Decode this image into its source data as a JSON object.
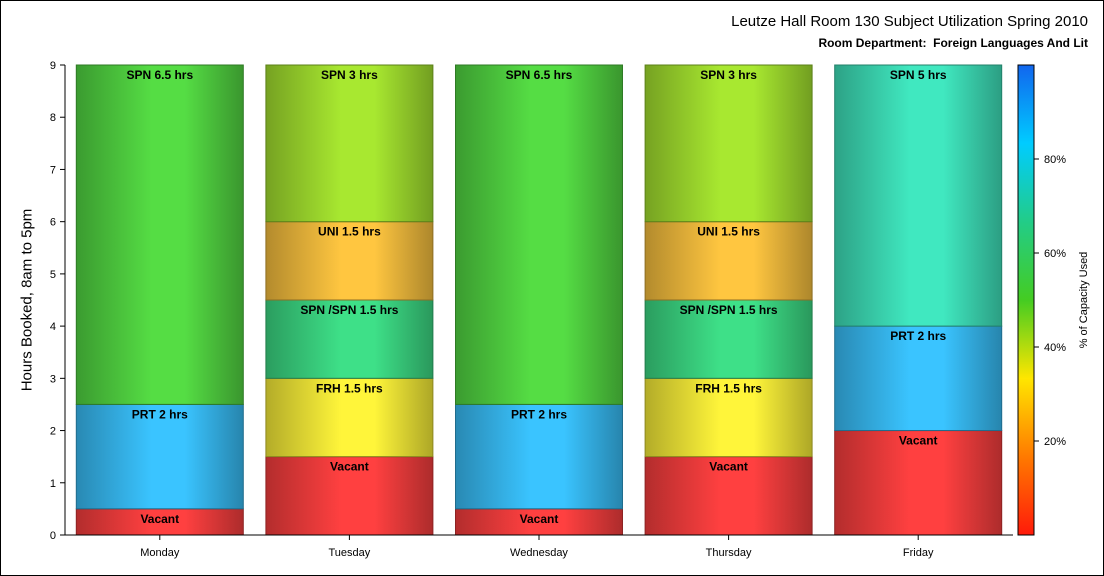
{
  "title": "Leutze Hall Room 130 Subject Utilization Spring 2010",
  "subtitle": "Room Department:  Foreign Languages And Lit",
  "chart_data": {
    "type": "bar",
    "stacked": true,
    "ylabel": "Hours Booked, 8am to 5pm",
    "xlabel": "",
    "ylim": [
      0,
      9
    ],
    "yticks": [
      "0",
      "1",
      "2",
      "3",
      "4",
      "5",
      "6",
      "7",
      "8",
      "9"
    ],
    "categories": [
      "Monday",
      "Tuesday",
      "Wednesday",
      "Thursday",
      "Friday"
    ],
    "stacks": [
      [
        {
          "label": "Vacant",
          "hours": 0.5,
          "capacity_pct": 0
        },
        {
          "label": "PRT 2 hrs",
          "hours": 2,
          "capacity_pct": 88
        },
        {
          "label": "SPN 6.5 hrs",
          "hours": 6.5,
          "capacity_pct": 65
        }
      ],
      [
        {
          "label": "Vacant",
          "hours": 1.5,
          "capacity_pct": 0
        },
        {
          "label": "FRH 1.5 hrs",
          "hours": 1.5,
          "capacity_pct": 50
        },
        {
          "label": "SPN /SPN 1.5 hrs",
          "hours": 1.5,
          "capacity_pct": 72
        },
        {
          "label": "UNI 1.5 hrs",
          "hours": 1.5,
          "capacity_pct": 44
        },
        {
          "label": "SPN 3 hrs",
          "hours": 3,
          "capacity_pct": 58
        }
      ],
      [
        {
          "label": "Vacant",
          "hours": 0.5,
          "capacity_pct": 0
        },
        {
          "label": "PRT 2 hrs",
          "hours": 2,
          "capacity_pct": 88
        },
        {
          "label": "SPN 6.5 hrs",
          "hours": 6.5,
          "capacity_pct": 65
        }
      ],
      [
        {
          "label": "Vacant",
          "hours": 1.5,
          "capacity_pct": 0
        },
        {
          "label": "FRH 1.5 hrs",
          "hours": 1.5,
          "capacity_pct": 50
        },
        {
          "label": "SPN /SPN 1.5 hrs",
          "hours": 1.5,
          "capacity_pct": 72
        },
        {
          "label": "UNI 1.5 hrs",
          "hours": 1.5,
          "capacity_pct": 44
        },
        {
          "label": "SPN 3 hrs",
          "hours": 3,
          "capacity_pct": 58
        }
      ],
      [
        {
          "label": "Vacant",
          "hours": 2,
          "capacity_pct": 0
        },
        {
          "label": "PRT 2 hrs",
          "hours": 2,
          "capacity_pct": 88
        },
        {
          "label": "SPN 5 hrs",
          "hours": 5,
          "capacity_pct": 76
        }
      ]
    ],
    "colorbar": {
      "label": "% of Capacity Used",
      "ticks": [
        "20%",
        "40%",
        "60%",
        "80%"
      ],
      "tick_values": [
        20,
        40,
        60,
        80
      ],
      "range": [
        0,
        100
      ],
      "colors": [
        "#ff1a0a",
        "#ff7a00",
        "#ffe600",
        "#44cc22",
        "#22cc88",
        "#00ccff",
        "#1166ee"
      ]
    },
    "segment_colors": {
      "Vacant": "#ff4040",
      "PRT 2 hrs": "#3ac4ff",
      "SPN 6.5 hrs": "#55dd44",
      "SPN 3 hrs": "#a8e830",
      "UNI 1.5 hrs": "#ffc640",
      "SPN /SPN 1.5 hrs": "#3ee088",
      "FRH 1.5 hrs": "#fff53a",
      "SPN 5 hrs": "#40e8c0"
    },
    "grid": false,
    "legend": "colorbar-right"
  }
}
